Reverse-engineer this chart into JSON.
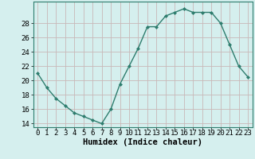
{
  "x": [
    0,
    1,
    2,
    3,
    4,
    5,
    6,
    7,
    8,
    9,
    10,
    11,
    12,
    13,
    14,
    15,
    16,
    17,
    18,
    19,
    20,
    21,
    22,
    23
  ],
  "y": [
    21,
    19,
    17.5,
    16.5,
    15.5,
    15,
    14.5,
    14,
    16,
    19.5,
    22,
    24.5,
    27.5,
    27.5,
    29,
    29.5,
    30,
    29.5,
    29.5,
    29.5,
    28,
    25,
    22,
    20.5
  ],
  "line_color": "#2e7d6e",
  "marker": "D",
  "marker_size": 2.0,
  "bg_color": "#d5efee",
  "grid_color": "#c8b8b8",
  "xlabel": "Humidex (Indice chaleur)",
  "ylim": [
    13.5,
    31
  ],
  "xlim": [
    -0.5,
    23.5
  ],
  "yticks": [
    14,
    16,
    18,
    20,
    22,
    24,
    26,
    28
  ],
  "xticks": [
    0,
    1,
    2,
    3,
    4,
    5,
    6,
    7,
    8,
    9,
    10,
    11,
    12,
    13,
    14,
    15,
    16,
    17,
    18,
    19,
    20,
    21,
    22,
    23
  ],
  "tick_fontsize": 6.5,
  "xlabel_fontsize": 7.5
}
